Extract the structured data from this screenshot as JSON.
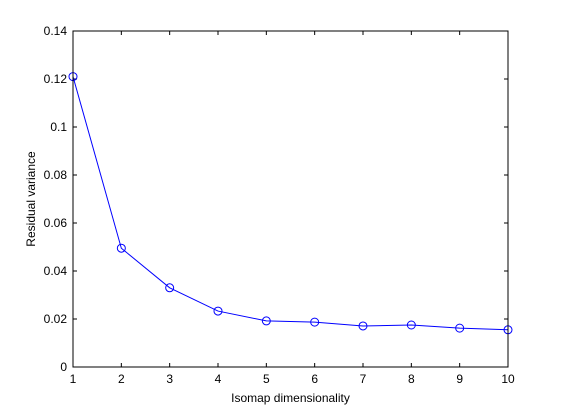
{
  "chart_data": {
    "type": "line",
    "title": "",
    "xlabel": "Isomap dimensionality",
    "ylabel": "Residual variance",
    "xlim": [
      1,
      10
    ],
    "ylim": [
      0,
      0.14
    ],
    "xticks": [
      "1",
      "2",
      "3",
      "4",
      "5",
      "6",
      "7",
      "8",
      "9",
      "10"
    ],
    "yticks": [
      "0",
      "0.02",
      "0.04",
      "0.06",
      "0.08",
      "0.1",
      "0.12",
      "0.14"
    ],
    "grid": false,
    "legend": "none",
    "series": [
      {
        "color": "#0000ff",
        "marker": "circle",
        "x": [
          1,
          2,
          3,
          4,
          5,
          6,
          7,
          8,
          9,
          10
        ],
        "y": [
          0.121,
          0.0495,
          0.033,
          0.0233,
          0.0192,
          0.0187,
          0.0171,
          0.0175,
          0.0162,
          0.0155
        ]
      }
    ]
  }
}
